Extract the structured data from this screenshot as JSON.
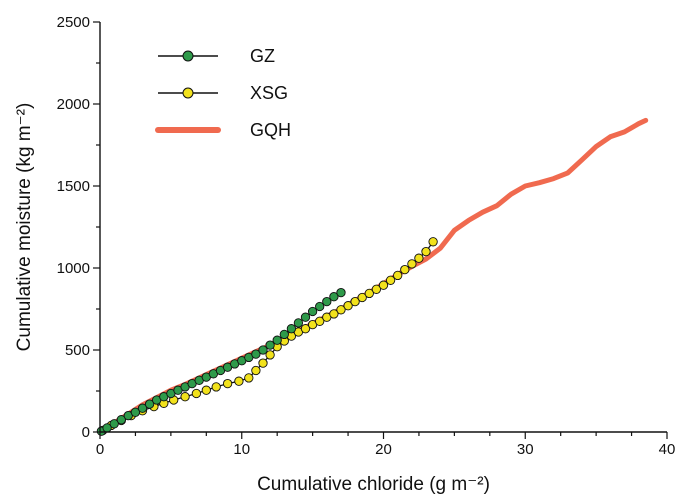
{
  "chart_data": {
    "type": "scatter",
    "title": "",
    "xlabel": "Cumulative chloride (g m⁻²)",
    "ylabel": "Cumulative moisture (kg m⁻²)",
    "xlim": [
      0,
      40
    ],
    "ylim": [
      0,
      2500
    ],
    "xticks": [
      "0",
      "10",
      "20",
      "30",
      "40"
    ],
    "yticks": [
      "0",
      "500",
      "1000",
      "1500",
      "2000",
      "2500"
    ],
    "grid": false,
    "legend_position": "top-left",
    "series": [
      {
        "name": "GZ",
        "style": "line-with-markers",
        "marker_color": "#2e9a4a",
        "line_color": "#111111",
        "points": [
          [
            0.1,
            5
          ],
          [
            0.5,
            25
          ],
          [
            1.0,
            50
          ],
          [
            1.5,
            75
          ],
          [
            2.0,
            100
          ],
          [
            2.5,
            120
          ],
          [
            3.0,
            145
          ],
          [
            3.5,
            170
          ],
          [
            4.0,
            195
          ],
          [
            4.5,
            215
          ],
          [
            5.0,
            235
          ],
          [
            5.5,
            255
          ],
          [
            6.0,
            275
          ],
          [
            6.5,
            295
          ],
          [
            7.0,
            315
          ],
          [
            7.5,
            335
          ],
          [
            8.0,
            355
          ],
          [
            8.5,
            375
          ],
          [
            9.0,
            395
          ],
          [
            9.5,
            415
          ],
          [
            10.0,
            435
          ],
          [
            10.5,
            455
          ],
          [
            11.0,
            475
          ],
          [
            11.5,
            500
          ],
          [
            12.0,
            530
          ],
          [
            12.5,
            560
          ],
          [
            13.0,
            595
          ],
          [
            13.5,
            630
          ],
          [
            14.0,
            665
          ],
          [
            14.5,
            700
          ],
          [
            15.0,
            735
          ],
          [
            15.5,
            765
          ],
          [
            16.0,
            795
          ],
          [
            16.5,
            825
          ],
          [
            17.0,
            850
          ]
        ]
      },
      {
        "name": "XSG",
        "style": "line-with-markers",
        "marker_color": "#f2e21c",
        "line_color": "#111111",
        "points": [
          [
            0.2,
            10
          ],
          [
            0.8,
            40
          ],
          [
            1.5,
            70
          ],
          [
            2.2,
            100
          ],
          [
            3.0,
            130
          ],
          [
            3.8,
            155
          ],
          [
            4.5,
            175
          ],
          [
            5.2,
            195
          ],
          [
            6.0,
            215
          ],
          [
            6.8,
            235
          ],
          [
            7.5,
            255
          ],
          [
            8.2,
            275
          ],
          [
            9.0,
            295
          ],
          [
            9.8,
            310
          ],
          [
            10.5,
            330
          ],
          [
            11.0,
            375
          ],
          [
            11.5,
            420
          ],
          [
            12.0,
            470
          ],
          [
            12.5,
            520
          ],
          [
            13.0,
            555
          ],
          [
            13.5,
            585
          ],
          [
            14.0,
            610
          ],
          [
            14.5,
            630
          ],
          [
            15.0,
            655
          ],
          [
            15.5,
            675
          ],
          [
            16.0,
            700
          ],
          [
            16.5,
            720
          ],
          [
            17.0,
            745
          ],
          [
            17.5,
            770
          ],
          [
            18.0,
            795
          ],
          [
            18.5,
            820
          ],
          [
            19.0,
            845
          ],
          [
            19.5,
            870
          ],
          [
            20.0,
            895
          ],
          [
            20.5,
            925
          ],
          [
            21.0,
            955
          ],
          [
            21.5,
            990
          ],
          [
            22.0,
            1025
          ],
          [
            22.5,
            1060
          ],
          [
            23.0,
            1100
          ],
          [
            23.5,
            1160
          ]
        ]
      },
      {
        "name": "GQH",
        "style": "line",
        "line_color": "#f06a4f",
        "points": [
          [
            0.0,
            0
          ],
          [
            1.0,
            55
          ],
          [
            2.0,
            110
          ],
          [
            3.0,
            165
          ],
          [
            4.0,
            210
          ],
          [
            5.0,
            255
          ],
          [
            6.0,
            290
          ],
          [
            7.0,
            330
          ],
          [
            8.0,
            370
          ],
          [
            9.0,
            410
          ],
          [
            10.0,
            450
          ],
          [
            11.0,
            490
          ],
          [
            12.0,
            530
          ],
          [
            13.0,
            570
          ],
          [
            14.0,
            615
          ],
          [
            15.0,
            660
          ],
          [
            16.0,
            705
          ],
          [
            17.0,
            750
          ],
          [
            18.0,
            800
          ],
          [
            19.0,
            850
          ],
          [
            20.0,
            905
          ],
          [
            21.0,
            960
          ],
          [
            22.0,
            1010
          ],
          [
            23.0,
            1055
          ],
          [
            24.0,
            1120
          ],
          [
            25.0,
            1230
          ],
          [
            26.0,
            1290
          ],
          [
            27.0,
            1340
          ],
          [
            28.0,
            1380
          ],
          [
            29.0,
            1450
          ],
          [
            30.0,
            1500
          ],
          [
            31.0,
            1520
          ],
          [
            32.0,
            1545
          ],
          [
            33.0,
            1580
          ],
          [
            34.0,
            1660
          ],
          [
            35.0,
            1740
          ],
          [
            36.0,
            1800
          ],
          [
            37.0,
            1830
          ],
          [
            38.0,
            1880
          ],
          [
            38.5,
            1900
          ]
        ]
      }
    ]
  }
}
